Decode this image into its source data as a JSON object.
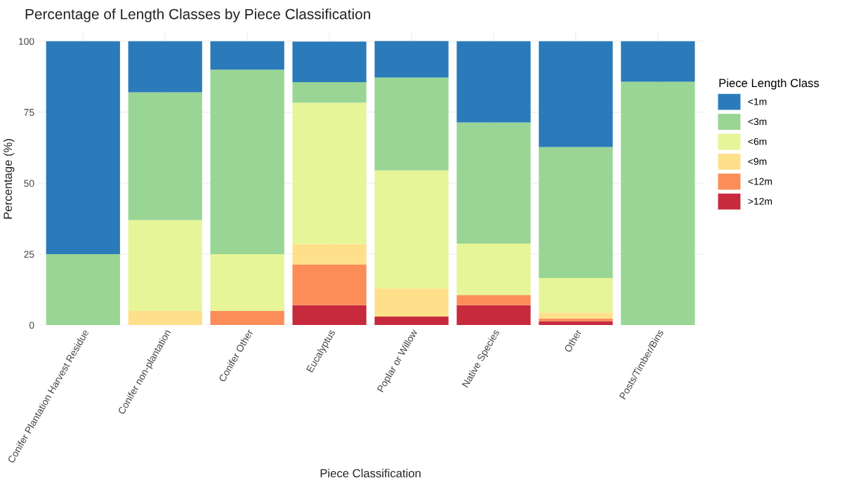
{
  "chart_data": {
    "type": "bar",
    "stacked": true,
    "title": "Percentage of Length Classes by Piece Classification",
    "xlabel": "Piece Classification",
    "ylabel": "Percentage (%)",
    "legend_title": "Piece Length Class",
    "legend": "right",
    "grid": true,
    "categories": [
      "Conifer Plantation Harvest Residue",
      "Conifer non-plantation",
      "Conifer Other",
      "Eucalyptus",
      "Poplar or Willow",
      "Native Species",
      "Other",
      "Posts/Timber/Bins"
    ],
    "ylim": [
      0,
      103
    ],
    "yticks": [
      0,
      25,
      50,
      75,
      100
    ],
    "series": [
      {
        "name": ">12m",
        "color": "#c62a3c",
        "values": [
          0,
          0,
          0,
          7,
          3,
          7,
          1.4,
          0
        ]
      },
      {
        "name": "<12m",
        "color": "#fc8d59",
        "values": [
          0,
          0,
          5,
          14.3,
          0,
          3.6,
          0.9,
          0
        ]
      },
      {
        "name": "<9m",
        "color": "#fee08b",
        "values": [
          0,
          5,
          0,
          7.3,
          10,
          0,
          2.1,
          0
        ]
      },
      {
        "name": "<6m",
        "color": "#e6f598",
        "values": [
          0,
          32,
          20,
          49.8,
          41.5,
          18.1,
          12.2,
          0
        ]
      },
      {
        "name": "<3m",
        "color": "#99d594",
        "values": [
          25,
          45,
          65,
          7.2,
          32.7,
          42.7,
          46.1,
          85.7
        ]
      },
      {
        "name": "<1m",
        "color": "#2b7bba",
        "values": [
          75,
          18,
          10,
          14.3,
          12.9,
          28.6,
          37.3,
          14.3
        ]
      }
    ]
  }
}
